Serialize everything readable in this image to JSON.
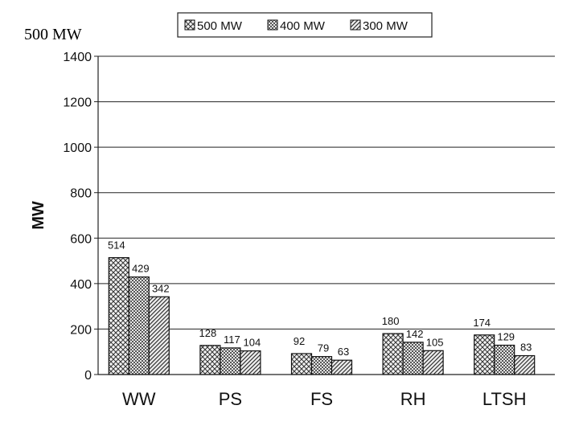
{
  "corner_label": "500 MW",
  "chart_data": {
    "type": "bar",
    "title": "",
    "xlabel": "",
    "ylabel": "MW",
    "ylim": [
      0,
      1400
    ],
    "yticks": [
      0,
      200,
      400,
      600,
      800,
      1000,
      1200,
      1400
    ],
    "grid": true,
    "legend_position": "top",
    "categories": [
      "WW",
      "PS",
      "FS",
      "RH",
      "LTSH"
    ],
    "series": [
      {
        "name": "500 MW",
        "values": [
          514,
          128,
          92,
          180,
          174
        ],
        "labels": [
          "514",
          "128",
          "92",
          "180",
          "174"
        ],
        "pattern": "diagonal-cross"
      },
      {
        "name": "400 MW",
        "values": [
          429,
          117,
          79,
          142,
          129
        ],
        "labels": [
          "429",
          "117",
          "79",
          "142",
          "129"
        ],
        "pattern": "checker"
      },
      {
        "name": "300 MW",
        "values": [
          342,
          104,
          63,
          105,
          83
        ],
        "labels": [
          "342",
          "104",
          "63",
          "105",
          "83"
        ],
        "pattern": "hatch"
      }
    ]
  }
}
